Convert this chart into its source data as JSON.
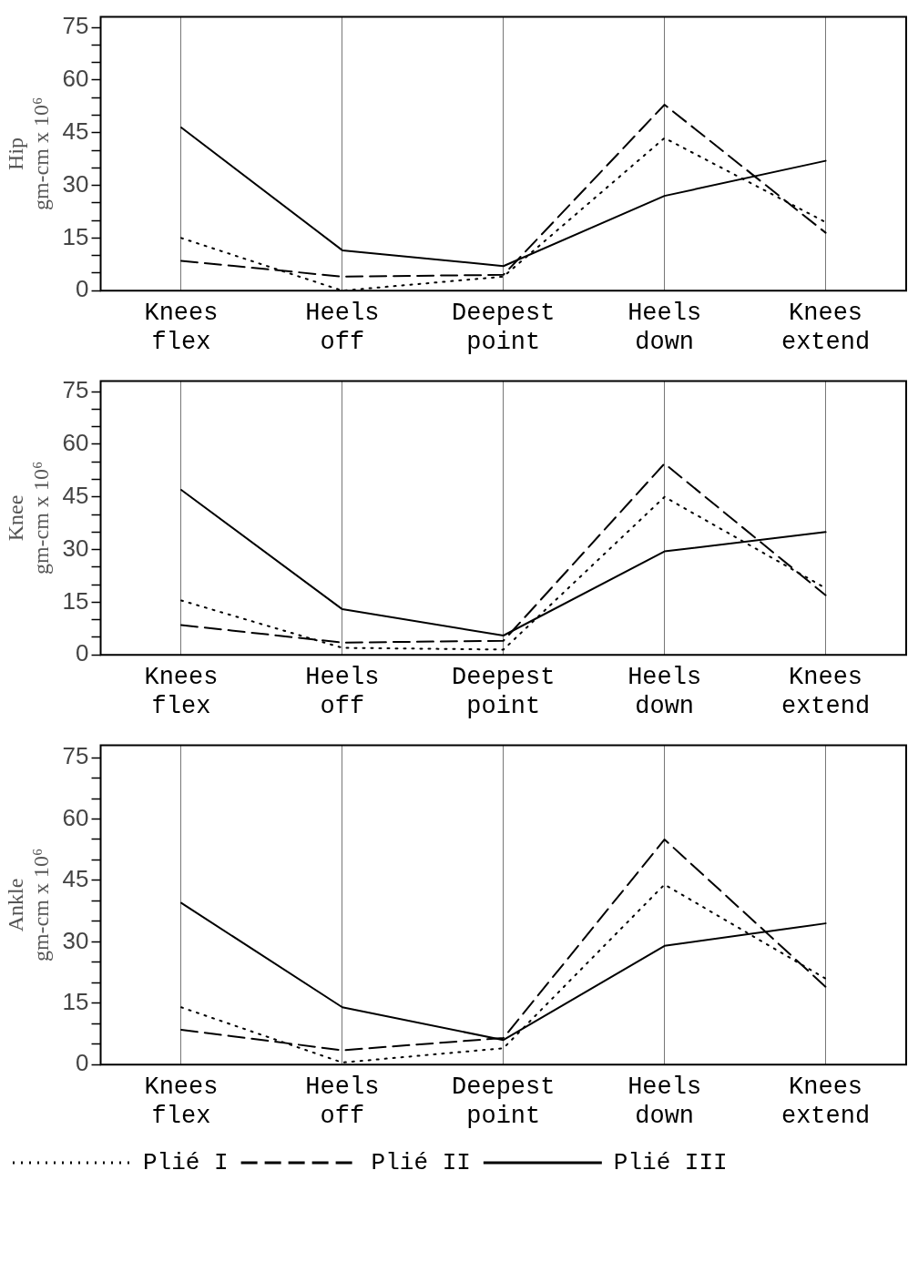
{
  "chart_data": [
    {
      "type": "line",
      "ylabel": "Hip\ngm-cm x 10⁶",
      "categories": [
        "Knees flex",
        "Heels off",
        "Deepest point",
        "Heels down",
        "Knees extend"
      ],
      "ylim": [
        0,
        78
      ],
      "yticks": [
        0,
        {
          "value": 5,
          "label": null
        },
        {
          "value": 10,
          "label": null
        },
        15,
        {
          "value": 20,
          "label": null
        },
        {
          "value": 25,
          "label": null
        },
        30,
        {
          "value": 35,
          "label": null
        },
        {
          "value": 40,
          "label": null
        },
        45,
        {
          "value": 50,
          "label": null
        },
        {
          "value": 55,
          "label": null
        },
        60,
        {
          "value": 65,
          "label": null
        },
        {
          "value": 70,
          "label": null
        },
        75
      ],
      "grid": "x",
      "series": [
        {
          "color": "#000000",
          "line_style": "dotted",
          "values": [
            15,
            0,
            4,
            43.5,
            19.5
          ]
        },
        {
          "color": "#000000",
          "line_style": "dashed",
          "values": [
            8.5,
            4,
            4.5,
            53,
            16.5
          ]
        },
        {
          "color": "#000000",
          "line_style": "solid",
          "values": [
            46.5,
            11.5,
            7,
            27,
            37
          ]
        }
      ]
    },
    {
      "type": "line",
      "ylabel": "Knee\ngm-cm x 10⁶",
      "categories": [
        "Knees flex",
        "Heels off",
        "Deepest point",
        "Heels down",
        "Knees extend"
      ],
      "ylim": [
        0,
        78
      ],
      "yticks": [
        0,
        {
          "value": 5,
          "label": null
        },
        {
          "value": 10,
          "label": null
        },
        15,
        {
          "value": 20,
          "label": null
        },
        {
          "value": 25,
          "label": null
        },
        30,
        {
          "value": 35,
          "label": null
        },
        {
          "value": 40,
          "label": null
        },
        45,
        {
          "value": 50,
          "label": null
        },
        {
          "value": 55,
          "label": null
        },
        60,
        {
          "value": 65,
          "label": null
        },
        {
          "value": 70,
          "label": null
        },
        75
      ],
      "grid": "x",
      "series": [
        {
          "color": "#000000",
          "line_style": "dotted",
          "values": [
            15.5,
            2,
            1.5,
            45,
            19
          ]
        },
        {
          "color": "#000000",
          "line_style": "dashed",
          "values": [
            8.5,
            3.5,
            4,
            54.5,
            17
          ]
        },
        {
          "color": "#000000",
          "line_style": "solid",
          "values": [
            47,
            13,
            5.5,
            29.5,
            35
          ]
        }
      ]
    },
    {
      "type": "line",
      "ylabel": "Ankle\ngm-cm x 10⁶",
      "categories": [
        "Knees flex",
        "Heels off",
        "Deepest point",
        "Heels down",
        "Knees extend"
      ],
      "ylim": [
        0,
        78
      ],
      "yticks": [
        0,
        {
          "value": 5,
          "label": null
        },
        {
          "value": 10,
          "label": null
        },
        15,
        {
          "value": 20,
          "label": null
        },
        {
          "value": 25,
          "label": null
        },
        30,
        {
          "value": 35,
          "label": null
        },
        {
          "value": 40,
          "label": null
        },
        45,
        {
          "value": 50,
          "label": null
        },
        {
          "value": 55,
          "label": null
        },
        60,
        {
          "value": 65,
          "label": null
        },
        {
          "value": 70,
          "label": null
        },
        75
      ],
      "grid": "x",
      "legend": "bottom",
      "series": [
        {
          "name": "Plié I",
          "color": "#000000",
          "line_style": "dotted",
          "values": [
            14,
            0.5,
            4,
            44,
            21
          ]
        },
        {
          "name": "Plié II",
          "color": "#000000",
          "line_style": "dashed",
          "values": [
            8.5,
            3.5,
            6.5,
            55,
            19
          ]
        },
        {
          "name": "Plié III",
          "color": "#000000",
          "line_style": "solid",
          "values": [
            39.5,
            14,
            6,
            29,
            34.5
          ]
        }
      ]
    }
  ]
}
